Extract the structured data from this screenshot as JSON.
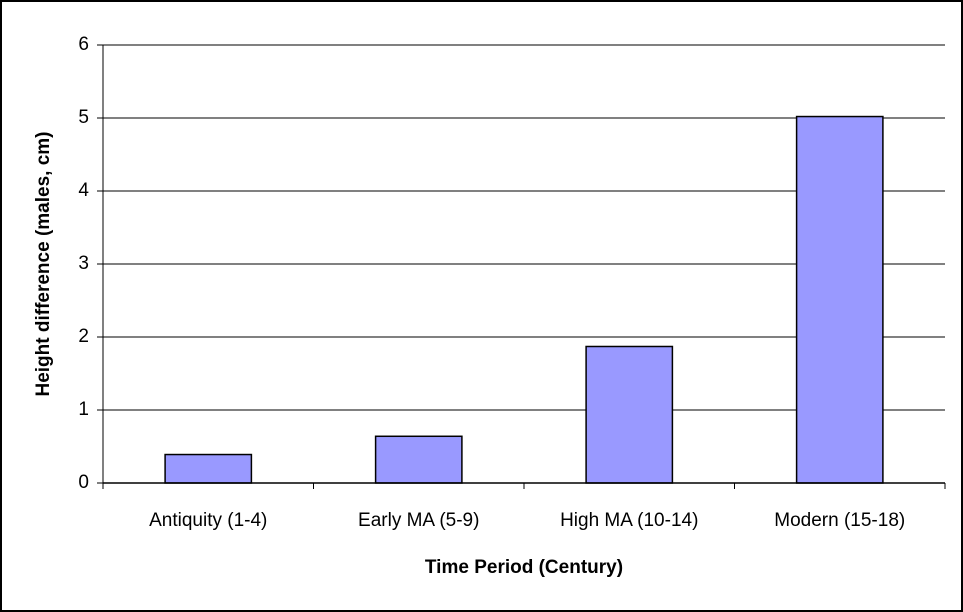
{
  "chart_data": {
    "type": "bar",
    "x_label": "Time Period (Century)",
    "y_label": "Height difference (males, cm)",
    "categories": [
      "Antiquity (1-4)",
      "Early MA (5-9)",
      "High MA (10-14)",
      "Modern (15-18)"
    ],
    "values": [
      0.39,
      0.64,
      1.87,
      5.02
    ],
    "color": "#9999ff",
    "ylim": [
      0,
      6
    ],
    "yticks": [
      0,
      1,
      2,
      3,
      4,
      5,
      6
    ],
    "grid": true
  }
}
